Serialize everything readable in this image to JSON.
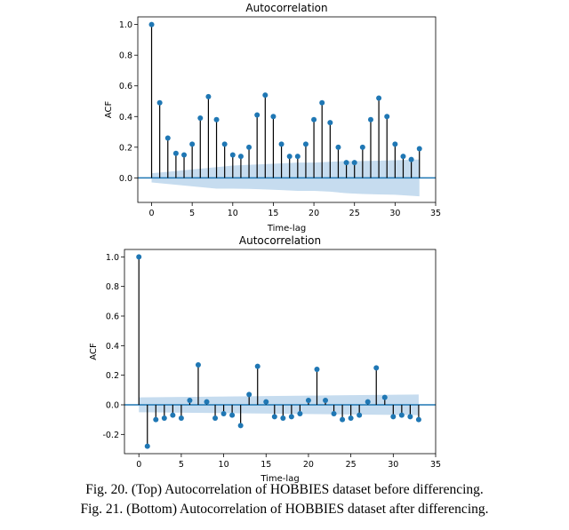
{
  "chart_data": [
    {
      "type": "stem",
      "title": "Autocorrelation",
      "xlabel": "Time-lag",
      "ylabel": "ACF",
      "xlim": [
        -1.7,
        35
      ],
      "ylim": [
        -0.16,
        1.05
      ],
      "xticks": [
        0,
        5,
        10,
        15,
        20,
        25,
        30,
        35
      ],
      "yticks": [
        0.0,
        0.2,
        0.4,
        0.6,
        0.8,
        1.0
      ],
      "ytick_labels": [
        "0.0",
        "0.2",
        "0.4",
        "0.6",
        "0.8",
        "1.0"
      ],
      "x": [
        0,
        1,
        2,
        3,
        4,
        5,
        6,
        7,
        8,
        9,
        10,
        11,
        12,
        13,
        14,
        15,
        16,
        17,
        18,
        19,
        20,
        21,
        22,
        23,
        24,
        25,
        26,
        27,
        28,
        29,
        30,
        31,
        32,
        33
      ],
      "values": [
        1.0,
        0.49,
        0.26,
        0.16,
        0.15,
        0.22,
        0.39,
        0.53,
        0.38,
        0.22,
        0.15,
        0.14,
        0.2,
        0.41,
        0.54,
        0.4,
        0.22,
        0.14,
        0.14,
        0.22,
        0.38,
        0.49,
        0.36,
        0.2,
        0.1,
        0.1,
        0.2,
        0.38,
        0.52,
        0.4,
        0.22,
        0.14,
        0.12,
        0.19
      ],
      "confidence_band": {
        "x": [
          0,
          2,
          4,
          6,
          8,
          10,
          12,
          14,
          16,
          18,
          20,
          22,
          24,
          26,
          28,
          30,
          33
        ],
        "upper": [
          0.03,
          0.04,
          0.05,
          0.06,
          0.07,
          0.08,
          0.085,
          0.09,
          0.095,
          0.1,
          0.1,
          0.105,
          0.11,
          0.11,
          0.112,
          0.115,
          0.12
        ],
        "lower": [
          -0.03,
          -0.04,
          -0.05,
          -0.06,
          -0.07,
          -0.07,
          -0.072,
          -0.075,
          -0.08,
          -0.085,
          -0.085,
          -0.09,
          -0.1,
          -0.105,
          -0.108,
          -0.11,
          -0.12
        ]
      },
      "colors": {
        "marker": "#1f77b4",
        "stem": "#000000",
        "band": "#c6dcef",
        "baseline": "#1f77b4"
      }
    },
    {
      "type": "stem",
      "title": "Autocorrelation",
      "xlabel": "Time-lag",
      "ylabel": "ACF",
      "xlim": [
        -1.7,
        35
      ],
      "ylim": [
        -0.33,
        1.05
      ],
      "xticks": [
        0,
        5,
        10,
        15,
        20,
        25,
        30,
        35
      ],
      "yticks": [
        -0.2,
        0.0,
        0.2,
        0.4,
        0.6,
        0.8,
        1.0
      ],
      "ytick_labels": [
        "-0.2",
        "0.0",
        "0.2",
        "0.4",
        "0.6",
        "0.8",
        "1.0"
      ],
      "x": [
        0,
        1,
        2,
        3,
        4,
        5,
        6,
        7,
        8,
        9,
        10,
        11,
        12,
        13,
        14,
        15,
        16,
        17,
        18,
        19,
        20,
        21,
        22,
        23,
        24,
        25,
        26,
        27,
        28,
        29,
        30,
        31,
        32,
        33
      ],
      "values": [
        1.0,
        -0.28,
        -0.1,
        -0.09,
        -0.07,
        -0.09,
        0.03,
        0.27,
        0.02,
        -0.09,
        -0.06,
        -0.07,
        -0.14,
        0.07,
        0.26,
        0.02,
        -0.08,
        -0.09,
        -0.08,
        -0.06,
        0.03,
        0.24,
        0.03,
        -0.06,
        -0.1,
        -0.09,
        -0.07,
        0.02,
        0.25,
        0.05,
        -0.08,
        -0.07,
        -0.08,
        -0.1
      ],
      "confidence_band": {
        "x": [
          0,
          33
        ],
        "upper": [
          0.05,
          0.07
        ],
        "lower": [
          -0.05,
          -0.07
        ]
      },
      "colors": {
        "marker": "#1f77b4",
        "stem": "#000000",
        "band": "#c6dcef",
        "baseline": "#1f77b4"
      }
    }
  ],
  "caption": {
    "line1": "Fig. 20. (Top) Autocorrelation of HOBBIES dataset before differencing.",
    "line2": "Fig. 21. (Bottom) Autocorrelation of HOBBIES dataset after differencing."
  }
}
